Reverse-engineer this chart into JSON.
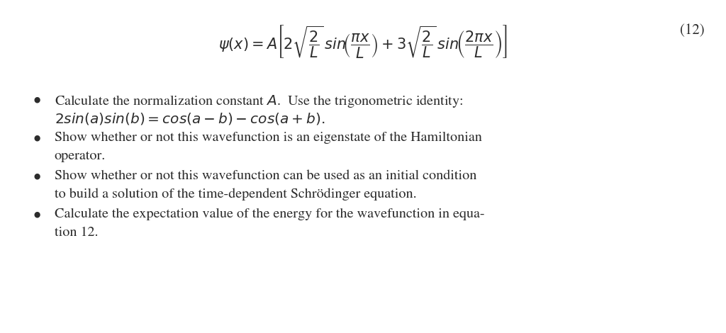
{
  "background_color": "#ffffff",
  "equation": "$\\psi(x) = A\\left[2\\sqrt{\\dfrac{2}{L}}\\,sin\\!\\left(\\dfrac{\\pi x}{L}\\right)+3\\sqrt{\\dfrac{2}{L}}\\,sin\\!\\left(\\dfrac{2\\pi x}{L}\\right)\\right]$",
  "equation_number": "(12)",
  "bullet1_line1": "Calculate the normalization constant $A$.  Use the trigonometric identity:",
  "bullet1_line2": "$2sin(a)sin(b) = cos(a-b) - cos(a+b).$",
  "bullet2_line1": "Show whether or not this wavefunction is an eigenstate of the Hamiltonian",
  "bullet2_line2": "operator.",
  "bullet3_line1": "Show whether or not this wavefunction can be used as an initial condition",
  "bullet3_line2": "to build a solution of the time-dependent Schrödinger equation.",
  "bullet4_line1": "Calculate the expectation value of the energy for the wavefunction in equa-",
  "bullet4_line2": "tion 12.",
  "text_color": "#2c2c2c",
  "font_size_eq": 15,
  "font_size_text": 14.5
}
